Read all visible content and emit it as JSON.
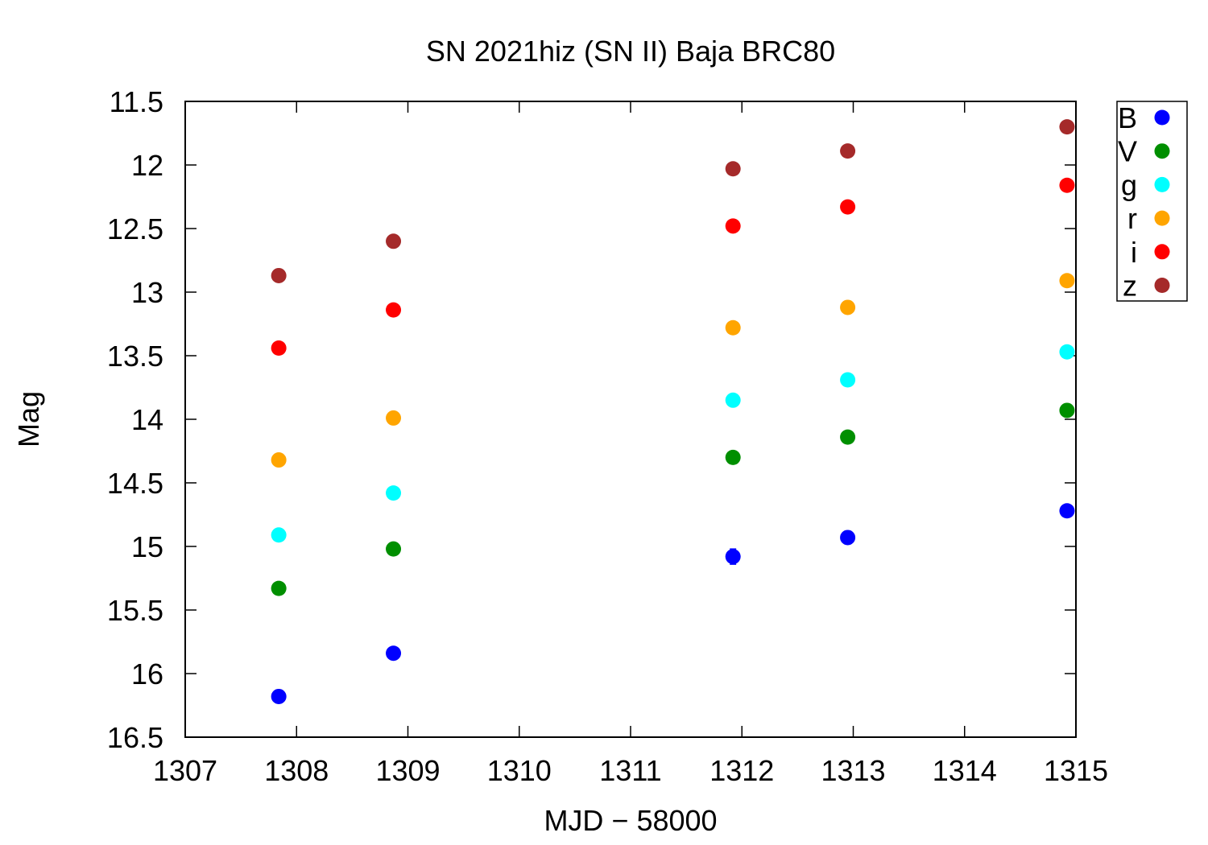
{
  "chart_data": {
    "type": "scatter",
    "title": "SN 2021hiz (SN II) Baja BRC80",
    "xlabel": "MJD − 58000",
    "ylabel": "Mag",
    "xlim": [
      1307,
      1315
    ],
    "ylim": [
      16.5,
      11.5
    ],
    "y_inverted": true,
    "x_ticks": [
      1307,
      1308,
      1309,
      1310,
      1311,
      1312,
      1313,
      1314,
      1315
    ],
    "x_tick_labels": [
      "1307",
      "1308",
      "1309",
      "1310",
      "1311",
      "1312",
      "1313",
      "1314",
      "1315"
    ],
    "y_ticks": [
      11.5,
      12,
      12.5,
      13,
      13.5,
      14,
      14.5,
      15,
      15.5,
      16,
      16.5
    ],
    "y_tick_labels": [
      "11.5",
      "12",
      "12.5",
      "13",
      "13.5",
      "14",
      "14.5",
      "15",
      "15.5",
      "16",
      "16.5"
    ],
    "grid": false,
    "legend_position": "outside-top-right",
    "series": [
      {
        "name": "B",
        "color": "#0000ff",
        "x": [
          1307.84,
          1308.87,
          1311.92,
          1312.95,
          1314.92
        ],
        "y": [
          16.18,
          15.84,
          15.08,
          14.93,
          14.72
        ],
        "err": [
          0.05,
          0.04,
          0.06,
          0.05,
          0.04
        ]
      },
      {
        "name": "V",
        "color": "#008f00",
        "x": [
          1307.84,
          1308.87,
          1311.92,
          1312.95,
          1314.92
        ],
        "y": [
          15.33,
          15.02,
          14.3,
          14.14,
          13.93
        ]
      },
      {
        "name": "g",
        "color": "#00ffff",
        "x": [
          1307.84,
          1308.87,
          1311.92,
          1312.95,
          1314.92
        ],
        "y": [
          14.91,
          14.58,
          13.85,
          13.69,
          13.47
        ]
      },
      {
        "name": "r",
        "color": "#ffa500",
        "x": [
          1307.84,
          1308.87,
          1311.92,
          1312.95,
          1314.92
        ],
        "y": [
          14.32,
          13.99,
          13.28,
          13.12,
          12.91
        ]
      },
      {
        "name": "i",
        "color": "#ff0000",
        "x": [
          1307.84,
          1308.87,
          1311.92,
          1312.95,
          1314.92
        ],
        "y": [
          13.44,
          13.14,
          12.48,
          12.33,
          12.16
        ]
      },
      {
        "name": "z",
        "color": "#a52a2a",
        "x": [
          1307.84,
          1308.87,
          1311.92,
          1312.95,
          1314.92
        ],
        "y": [
          12.87,
          12.6,
          12.03,
          11.89,
          11.7
        ]
      }
    ]
  }
}
